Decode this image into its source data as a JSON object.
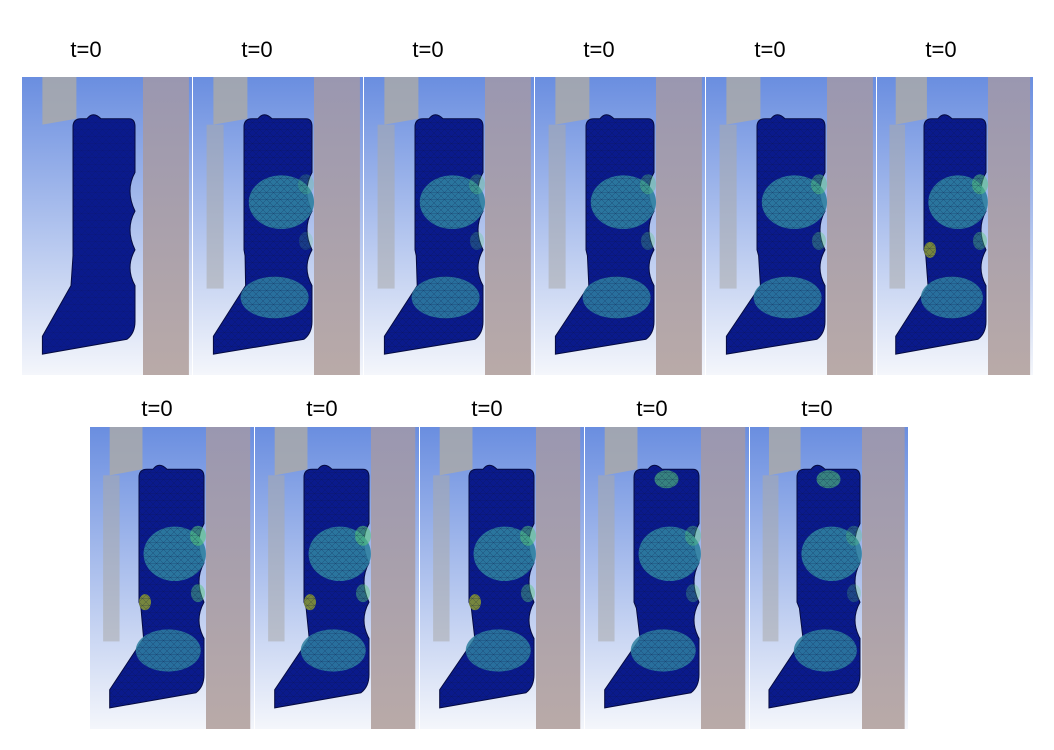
{
  "frames": [
    {
      "label": "t=0"
    },
    {
      "label": "t=0"
    },
    {
      "label": "t=0"
    },
    {
      "label": "t=0"
    },
    {
      "label": "t=0"
    },
    {
      "label": "t=0"
    },
    {
      "label": "t=0"
    },
    {
      "label": "t=0"
    },
    {
      "label": "t=0"
    },
    {
      "label": "t=0"
    },
    {
      "label": "t=0"
    }
  ],
  "colors": {
    "bg_top": "#6a8ee0",
    "bg_bottom": "#f4f6fb",
    "groove_wall": "#a9a9a9",
    "rod": "#b9aaa8",
    "seal_low": "#0a1a8c",
    "seal_mid": "#2e7fa0",
    "seal_high": "#55c878",
    "seal_peak": "#8a9a30",
    "mesh": "#0c1440"
  }
}
